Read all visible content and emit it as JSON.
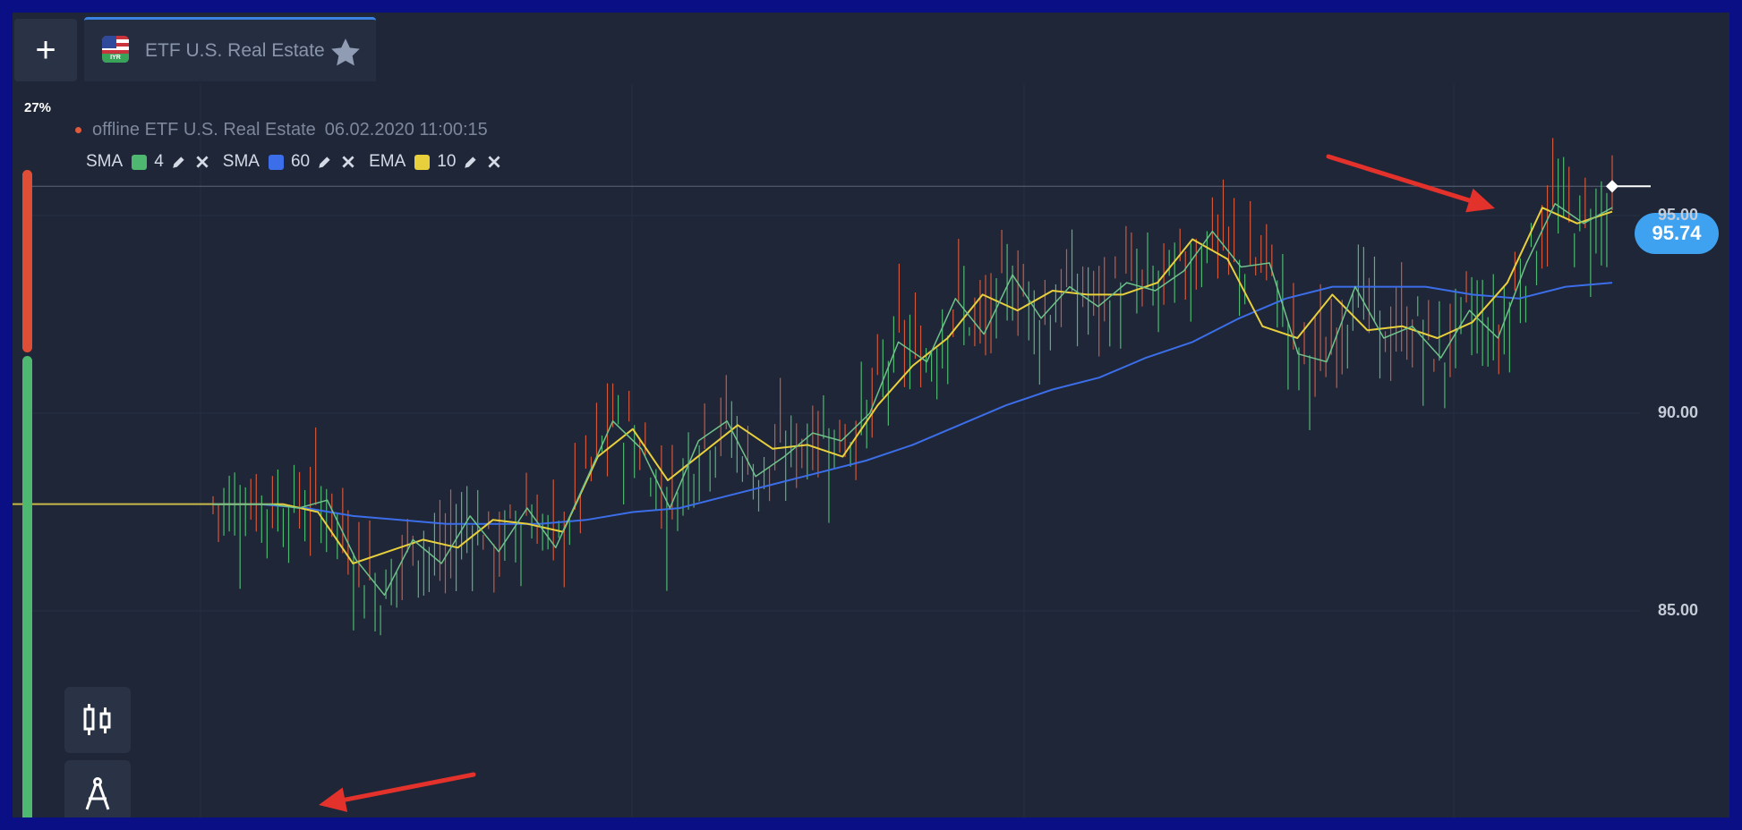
{
  "tab": {
    "title": "ETF U.S. Real Estate",
    "flag_text": "IYR"
  },
  "sentiment": {
    "percent": "27%",
    "down_color": "#de4e36",
    "up_color": "#4fb870"
  },
  "status": {
    "state": "offline",
    "asset": "ETF U.S. Real Estate",
    "datetime": "06.02.2020 11:00:15"
  },
  "indicators": [
    {
      "name": "SMA",
      "period": "4",
      "color": "#4fb870"
    },
    {
      "name": "SMA",
      "period": "60",
      "color": "#3b6ee8"
    },
    {
      "name": "EMA",
      "period": "10",
      "color": "#e8cf3c"
    }
  ],
  "price_badge": "95.74",
  "axis": {
    "labels": [
      "95.00",
      "90.00",
      "85.00"
    ],
    "values": [
      95,
      90,
      85
    ]
  },
  "toolbar": {
    "icons": [
      "chart-type-icon",
      "drawing-tool-icon"
    ]
  },
  "chart_data": {
    "type": "candlestick",
    "current_price": 95.74,
    "y_ticks": [
      95,
      90,
      85
    ],
    "series": [
      {
        "name": "SMA 4",
        "color": "#4fb870",
        "values": [
          87.7,
          87.7,
          87.7,
          87.6,
          87.8,
          86.3,
          85.4,
          86.8,
          86.2,
          87.4,
          86.5,
          87.6,
          86.6,
          88.2,
          89.8,
          89.1,
          87.6,
          89.3,
          89.8,
          88.4,
          88.9,
          89.5,
          89.3,
          90.0,
          91.8,
          91.3,
          92.9,
          92.0,
          93.5,
          92.4,
          93.2,
          92.7,
          93.3,
          93.1,
          93.6,
          94.6,
          93.7,
          93.8,
          91.5,
          91.3,
          93.2,
          91.9,
          92.2,
          91.4,
          92.6,
          91.9,
          93.8,
          95.3,
          94.8,
          95.2
        ]
      },
      {
        "name": "SMA 60",
        "color": "#3b6ee8",
        "values": [
          87.7,
          87.7,
          87.6,
          87.4,
          87.3,
          87.2,
          87.2,
          87.2,
          87.3,
          87.5,
          87.6,
          87.9,
          88.2,
          88.5,
          88.8,
          89.2,
          89.7,
          90.2,
          90.6,
          90.9,
          91.4,
          91.8,
          92.4,
          92.9,
          93.2,
          93.2,
          93.2,
          93.0,
          92.9,
          93.2,
          93.3
        ]
      },
      {
        "name": "EMA 10",
        "color": "#e8cf3c",
        "values": [
          87.7,
          87.7,
          87.7,
          87.5,
          86.2,
          86.5,
          86.8,
          86.6,
          87.3,
          87.2,
          87.0,
          88.9,
          89.6,
          88.3,
          89.0,
          89.7,
          89.1,
          89.2,
          88.9,
          90.2,
          91.2,
          91.9,
          93.0,
          92.6,
          93.1,
          93.0,
          93.0,
          93.3,
          94.4,
          93.9,
          92.2,
          91.9,
          93.0,
          92.1,
          92.2,
          91.9,
          92.3,
          93.3,
          95.2,
          94.8,
          95.1
        ]
      }
    ]
  }
}
